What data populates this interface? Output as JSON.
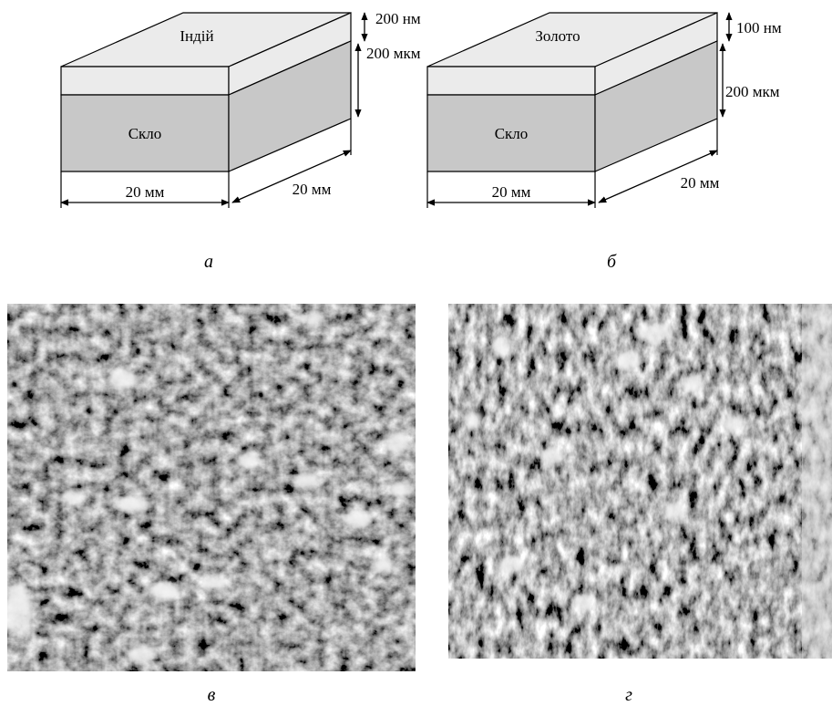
{
  "panels": [
    {
      "top_layer": "Індій",
      "substrate": "Скло",
      "layer_thickness": "200 нм",
      "substrate_thickness": "200 мкм",
      "width": "20 мм",
      "depth": "20 мм",
      "caption": "а"
    },
    {
      "top_layer": "Золото",
      "substrate": "Скло",
      "layer_thickness": "100 нм",
      "substrate_thickness": "200 мкм",
      "width": "20 мм",
      "depth": "20 мм",
      "caption": "б"
    }
  ],
  "images": [
    {
      "caption": "в"
    },
    {
      "caption": "г"
    }
  ]
}
